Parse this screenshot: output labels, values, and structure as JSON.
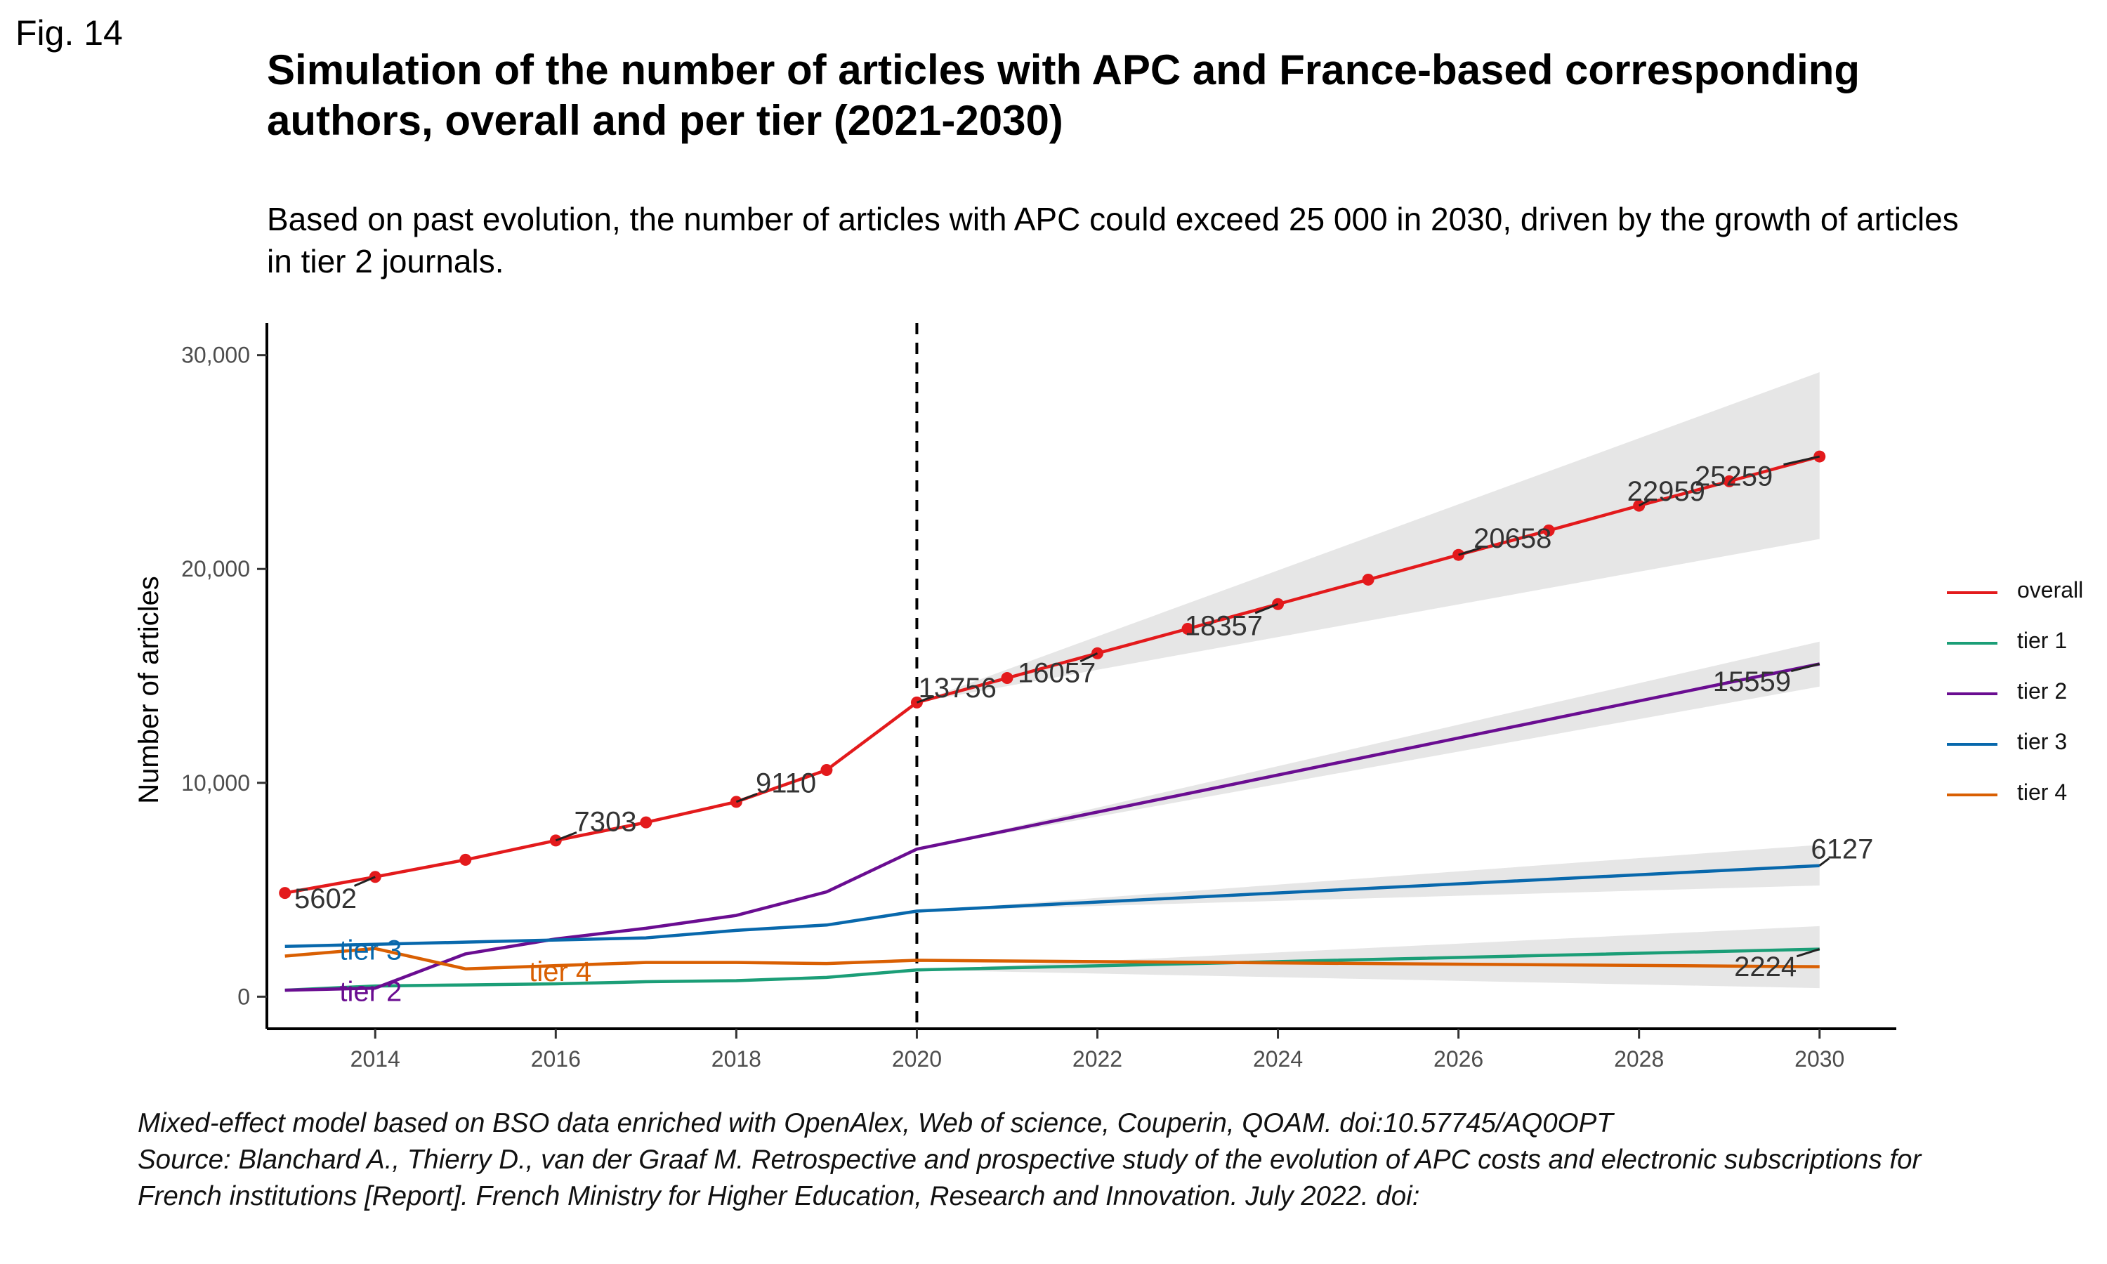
{
  "figure_label": "Fig. 14",
  "title": "Simulation of the number of articles with APC and France-based corresponding authors, overall and per tier (2021-2030)",
  "subtitle": "Based on past evolution, the number of articles with APC could exceed 25 000 in 2030, driven by the growth of articles in tier 2 journals.",
  "caption": {
    "line1": "Mixed-effect model based on BSO data enriched with OpenAlex, Web of science, Couperin, QOAM. doi:10.57745/AQ0OPT",
    "line2": "Source: Blanchard A., Thierry D., van der Graaf M. Retrospective and prospective study of the evolution of APC costs and electronic subscriptions for",
    "line3": "French institutions [Report]. French Ministry for Higher Education, Research and Innovation. July 2022. doi:"
  },
  "chart_data": {
    "type": "line",
    "xlabel": "",
    "ylabel": "Number of articles",
    "xlim": [
      2012.8,
      2030.85
    ],
    "ylim": [
      -1500,
      31500
    ],
    "x_ticks": [
      2014,
      2016,
      2018,
      2020,
      2022,
      2024,
      2026,
      2028,
      2030
    ],
    "y_ticks": [
      0,
      10000,
      20000,
      30000
    ],
    "y_tick_labels": [
      "0",
      "10,000",
      "20,000",
      "30,000"
    ],
    "vline": 2020,
    "grid": false,
    "legend_position": "right",
    "series": [
      {
        "name": "overall",
        "color": "#e31a1c",
        "markers": true,
        "x": [
          2013,
          2014,
          2015,
          2016,
          2017,
          2018,
          2019,
          2020,
          2021,
          2022,
          2023,
          2024,
          2025,
          2026,
          2027,
          2028,
          2029,
          2030
        ],
        "y": [
          4850,
          5602,
          6400,
          7303,
          8150,
          9110,
          10600,
          13756,
          14900,
          16057,
          17200,
          18357,
          19500,
          20658,
          21800,
          22959,
          24100,
          25259
        ],
        "band": {
          "x": [
            2020,
            2030
          ],
          "lower": [
            13756,
            21400
          ],
          "upper": [
            13756,
            29200
          ]
        },
        "labels": [
          {
            "x": 2014,
            "y": 5602,
            "text": "5602",
            "dx": -0.55,
            "dy": -1000
          },
          {
            "x": 2016,
            "y": 7303,
            "text": "7303",
            "dx": 0.55,
            "dy": 900
          },
          {
            "x": 2018,
            "y": 9110,
            "text": "9110",
            "dx": 0.55,
            "dy": 900
          },
          {
            "x": 2020,
            "y": 13756,
            "text": "13756",
            "dx": 0.45,
            "dy": 700
          },
          {
            "x": 2022,
            "y": 16057,
            "text": "16057",
            "dx": -0.45,
            "dy": -900
          },
          {
            "x": 2024,
            "y": 18357,
            "text": "18357",
            "dx": -0.6,
            "dy": -1000
          },
          {
            "x": 2026,
            "y": 20658,
            "text": "20658",
            "dx": 0.6,
            "dy": 800
          },
          {
            "x": 2028,
            "y": 22959,
            "text": "22959",
            "dx": 0.3,
            "dy": 700
          },
          {
            "x": 2030,
            "y": 25259,
            "text": "25259",
            "dx": -0.95,
            "dy": -900
          }
        ]
      },
      {
        "name": "tier 1",
        "color": "#1b9e77",
        "markers": false,
        "x": [
          2013,
          2014,
          2015,
          2016,
          2017,
          2018,
          2019,
          2020,
          2030
        ],
        "y": [
          300,
          500,
          550,
          600,
          700,
          750,
          900,
          1250,
          2224
        ],
        "band": {
          "x": [
            2020,
            2030
          ],
          "lower": [
            1250,
            400
          ],
          "upper": [
            1250,
            3300
          ]
        },
        "labels": [
          {
            "x": 2030,
            "y": 2224,
            "text": "2224",
            "dx": -0.6,
            "dy": -800
          }
        ]
      },
      {
        "name": "tier 2",
        "color": "#6a0d91",
        "markers": false,
        "x": [
          2013,
          2014,
          2015,
          2016,
          2017,
          2018,
          2019,
          2020,
          2030
        ],
        "y": [
          300,
          400,
          2000,
          2700,
          3200,
          3800,
          4900,
          6900,
          15559
        ],
        "band": {
          "x": [
            2020,
            2030
          ],
          "lower": [
            6900,
            14500
          ],
          "upper": [
            6900,
            16600
          ]
        },
        "labels": [
          {
            "x": 2030,
            "y": 15559,
            "text": "15559",
            "dx": -0.75,
            "dy": -800
          }
        ]
      },
      {
        "name": "tier 3",
        "color": "#0868ac",
        "markers": false,
        "x": [
          2013,
          2014,
          2015,
          2016,
          2017,
          2018,
          2019,
          2020,
          2030
        ],
        "y": [
          2350,
          2450,
          2550,
          2650,
          2750,
          3100,
          3350,
          4000,
          6127
        ],
        "band": {
          "x": [
            2020,
            2030
          ],
          "lower": [
            4000,
            5200
          ],
          "upper": [
            4000,
            7100
          ]
        },
        "labels": [
          {
            "x": 2030,
            "y": 6127,
            "text": "6127",
            "dx": 0.25,
            "dy": 800
          }
        ]
      },
      {
        "name": "tier 4",
        "color": "#d95f02",
        "markers": false,
        "x": [
          2013,
          2014,
          2015,
          2016,
          2017,
          2018,
          2019,
          2020,
          2030
        ],
        "y": [
          1900,
          2250,
          1300,
          1450,
          1600,
          1600,
          1550,
          1700,
          1400
        ],
        "band": null,
        "labels": []
      }
    ],
    "series_labels": [
      {
        "text": "tier 3",
        "x": 2013.95,
        "y": 2200,
        "color": "#0868ac"
      },
      {
        "text": "tier 4",
        "x": 2016.05,
        "y": 1200,
        "color": "#d95f02"
      },
      {
        "text": "tier 2",
        "x": 2013.95,
        "y": 250,
        "color": "#6a0d91"
      }
    ],
    "label_color": "#333333"
  }
}
